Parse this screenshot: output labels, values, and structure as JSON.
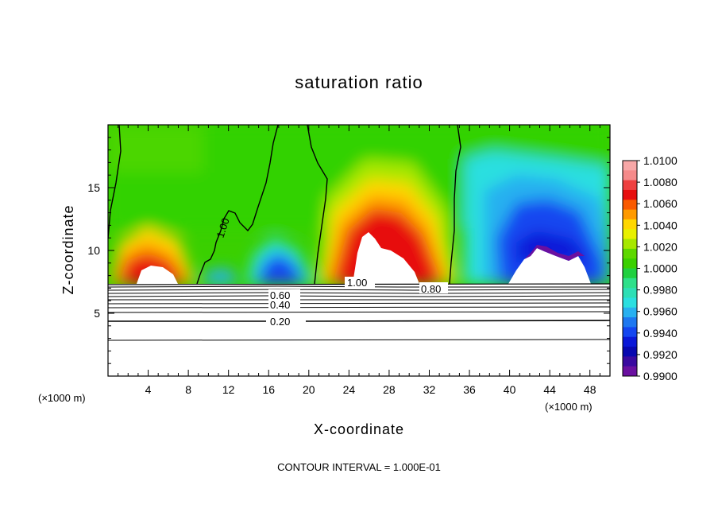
{
  "chart_data": {
    "type": "contour",
    "title": "saturation ratio",
    "xlabel": "X-coordinate",
    "ylabel": "Z-coordinate",
    "x_scale_note": "(×1000 m)",
    "xlim": [
      0,
      50
    ],
    "ylim": [
      0,
      20
    ],
    "x_ticks": [
      "4",
      "8",
      "12",
      "16",
      "20",
      "24",
      "28",
      "32",
      "36",
      "40",
      "44",
      "48"
    ],
    "y_ticks": [
      "5",
      "10",
      "15"
    ],
    "footer": "CONTOUR INTERVAL = 1.000E-01",
    "colorbar": {
      "labels": [
        "1.0100",
        "1.0080",
        "1.0060",
        "1.0040",
        "1.0020",
        "1.0000",
        "0.9980",
        "0.9960",
        "0.9940",
        "0.9920",
        "0.9900"
      ],
      "colors": [
        "#f7a7a7",
        "#f58a8a",
        "#ee4040",
        "#e70f0f",
        "#fa5a00",
        "#ff9a00",
        "#ffd700",
        "#e8f000",
        "#a7e800",
        "#5ed800",
        "#3ad000",
        "#20d040",
        "#2ee08a",
        "#2edfb5",
        "#2bdfe0",
        "#28b0f0",
        "#1e78f0",
        "#1446f0",
        "#0a18d8",
        "#0808b0",
        "#3a0aa0",
        "#6a10a0"
      ]
    },
    "contour_labels": [
      "1.00",
      "1.00",
      "0.80",
      "0.60",
      "0.40",
      "0.20"
    ],
    "bottom_mask_top_z": 7.2
  }
}
